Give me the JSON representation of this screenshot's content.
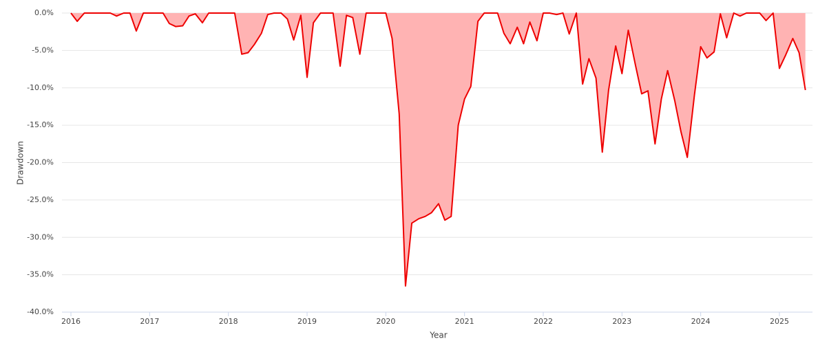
{
  "chart_data": {
    "type": "area",
    "x_label": "Year",
    "y_label": "Drawdown",
    "x": [
      2016,
      2016.08,
      2016.17,
      2016.25,
      2016.33,
      2016.42,
      2016.5,
      2016.58,
      2016.67,
      2016.75,
      2016.83,
      2016.92,
      2017,
      2017.08,
      2017.17,
      2017.25,
      2017.33,
      2017.42,
      2017.5,
      2017.58,
      2017.67,
      2017.75,
      2017.83,
      2017.92,
      2018,
      2018.08,
      2018.17,
      2018.25,
      2018.33,
      2018.42,
      2018.5,
      2018.58,
      2018.67,
      2018.75,
      2018.83,
      2018.92,
      2019,
      2019.08,
      2019.17,
      2019.25,
      2019.33,
      2019.42,
      2019.5,
      2019.58,
      2019.67,
      2019.75,
      2019.83,
      2019.92,
      2020,
      2020.08,
      2020.17,
      2020.25,
      2020.33,
      2020.42,
      2020.5,
      2020.58,
      2020.67,
      2020.75,
      2020.83,
      2020.92,
      2021,
      2021.08,
      2021.17,
      2021.25,
      2021.33,
      2021.42,
      2021.5,
      2021.58,
      2021.67,
      2021.75,
      2021.83,
      2021.92,
      2022,
      2022.08,
      2022.17,
      2022.25,
      2022.33,
      2022.42,
      2022.5,
      2022.58,
      2022.67,
      2022.75,
      2022.83,
      2022.92,
      2023,
      2023.08,
      2023.17,
      2023.25,
      2023.33,
      2023.42,
      2023.5,
      2023.58,
      2023.67,
      2023.75,
      2023.83,
      2023.92,
      2024,
      2024.08,
      2024.17,
      2024.25,
      2024.33,
      2024.42,
      2024.5,
      2024.58,
      2024.67,
      2024.75,
      2024.83,
      2024.92,
      2025,
      2025.08,
      2025.17,
      2025.25,
      2025.33
    ],
    "values": [
      0,
      -1.1,
      0,
      0,
      0,
      0,
      0,
      -0.4,
      0,
      0,
      -2.4,
      0,
      0,
      0,
      0,
      -1.4,
      -1.8,
      -1.7,
      -0.4,
      -0.1,
      -1.3,
      0,
      0,
      0,
      0,
      0,
      -5.5,
      -5.3,
      -4.2,
      -2.7,
      -0.2,
      0,
      0,
      -0.8,
      -3.6,
      -0.3,
      -8.6,
      -1.3,
      0,
      0,
      0,
      -7.1,
      -0.3,
      -0.6,
      -5.5,
      0,
      0,
      0,
      0,
      -3.4,
      -13.5,
      -36.5,
      -28.1,
      -27.5,
      -27.2,
      -26.7,
      -25.5,
      -27.7,
      -27.2,
      -15.0,
      -11.5,
      -9.8,
      -1.1,
      0,
      0,
      0,
      -2.7,
      -4.1,
      -1.9,
      -4.1,
      -1.2,
      -3.7,
      0,
      0,
      -0.2,
      0,
      -2.8,
      0,
      -9.5,
      -6.1,
      -8.7,
      -18.6,
      -10.3,
      -4.4,
      -8.1,
      -2.3,
      -6.9,
      -10.8,
      -10.4,
      -17.5,
      -11.5,
      -7.7,
      -11.7,
      -15.9,
      -19.3,
      -11.0,
      -4.5,
      -6.0,
      -5.2,
      -0.1,
      -3.3,
      0,
      -0.4,
      0,
      0,
      0,
      -1.0,
      0,
      -7.4,
      -5.6,
      -3.4,
      -5.3,
      -10.3
    ],
    "line_color": "#ee0000",
    "fill_color": "#ffb3b3",
    "xlim": [
      2015.886,
      2025.42
    ],
    "xticks": [
      2016,
      2017,
      2018,
      2019,
      2020,
      2021,
      2022,
      2023,
      2024,
      2025
    ],
    "ylim": [
      -40,
      0
    ],
    "yticks": [
      {
        "value": 0,
        "label": "0.0%"
      },
      {
        "value": -5,
        "label": "-5.0%"
      },
      {
        "value": -10,
        "label": "-10.0%"
      },
      {
        "value": -15,
        "label": "-15.0%"
      },
      {
        "value": -20,
        "label": "-20.0%"
      },
      {
        "value": -25,
        "label": "-25.0%"
      },
      {
        "value": -30,
        "label": "-30.0%"
      },
      {
        "value": -35,
        "label": "-35.0%"
      },
      {
        "value": -40,
        "label": "-40.0%"
      }
    ],
    "grid": true
  }
}
